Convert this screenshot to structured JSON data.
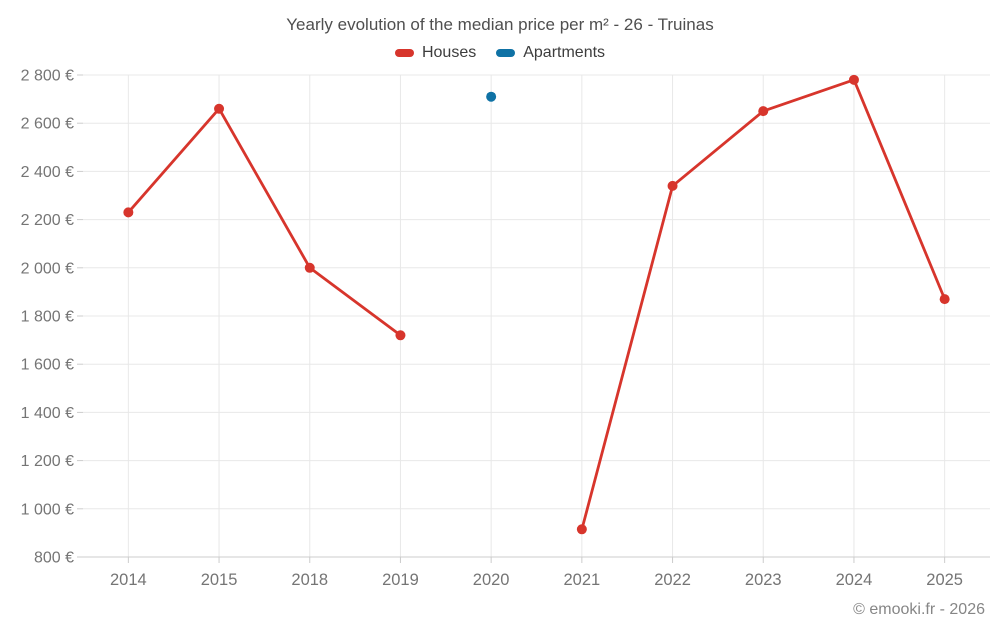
{
  "title": "Yearly evolution of the median price per m² - 26 - Truinas",
  "footer": "© emooki.fr - 2026",
  "legend": {
    "items": [
      {
        "label": "Houses",
        "color": "#d7352c"
      },
      {
        "label": "Apartments",
        "color": "#0f72a5"
      }
    ]
  },
  "chart_data": {
    "type": "line",
    "title": "Yearly evolution of the median price per m² - 26 - Truinas",
    "categories": [
      "2014",
      "2015",
      "2018",
      "2019",
      "2020",
      "2021",
      "2022",
      "2023",
      "2024",
      "2025"
    ],
    "series": [
      {
        "name": "Houses",
        "color": "#d7352c",
        "values": [
          2230,
          2660,
          2000,
          1720,
          null,
          915,
          2340,
          2650,
          2780,
          1870
        ]
      },
      {
        "name": "Apartments",
        "color": "#0f72a5",
        "values": [
          null,
          null,
          null,
          null,
          2710,
          null,
          null,
          null,
          null,
          null
        ]
      }
    ],
    "xlabel": "",
    "ylabel": "",
    "ylim": [
      800,
      2800
    ],
    "yticks": [
      800,
      1000,
      1200,
      1400,
      1600,
      1800,
      2000,
      2200,
      2400,
      2600,
      2800
    ],
    "ytick_labels": [
      "800 €",
      "1 000 €",
      "1 200 €",
      "1 400 €",
      "1 600 €",
      "1 800 €",
      "2 000 €",
      "2 200 €",
      "2 400 €",
      "2 600 €",
      "2 800 €"
    ],
    "grid": true,
    "legend_position": "top",
    "colors": {
      "grid_line": "#e8e8e8",
      "axis_line": "#cccccc",
      "tick_label": "#757575"
    }
  }
}
